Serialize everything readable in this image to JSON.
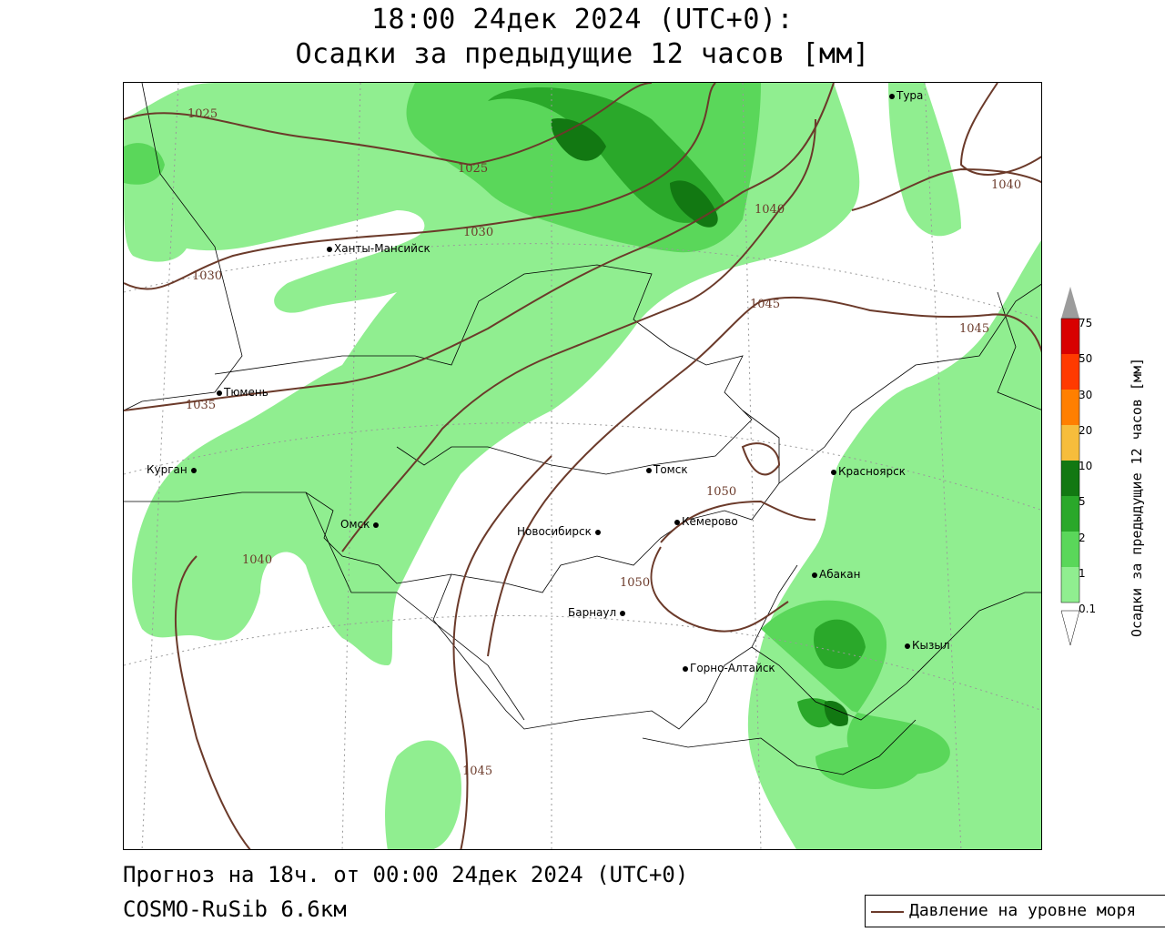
{
  "title_line1": "18:00 24дек 2024 (UTC+0):",
  "title_line2": "Осадки за предыдущие 12 часов [мм]",
  "footer_line1": "Прогноз на 18ч. от 00:00 24дек 2024 (UTC+0)",
  "footer_line2": "COSMO-RuSib 6.6км",
  "pressure_legend_label": "Давление на уровне моря",
  "legend": {
    "title": "Осадки за предыдущие 12 часов [мм]",
    "levels": [
      "0.1",
      "1",
      "2",
      "5",
      "10",
      "20",
      "30",
      "50",
      "75"
    ],
    "colors": [
      "#90ee90",
      "#5ad75a",
      "#2aa82a",
      "#127812",
      "#f6bd3c",
      "#ff7f00",
      "#ff3a00",
      "#d80000",
      "#a00000",
      "#9c9c9c"
    ]
  },
  "cities": [
    {
      "name": "Тура"
    },
    {
      "name": "Ханты-Мансийск"
    },
    {
      "name": "Тюмень"
    },
    {
      "name": "Курган"
    },
    {
      "name": "Омск"
    },
    {
      "name": "Томск"
    },
    {
      "name": "Красноярск"
    },
    {
      "name": "Кемерово"
    },
    {
      "name": "Новосибирск"
    },
    {
      "name": "Абакан"
    },
    {
      "name": "Барнаул"
    },
    {
      "name": "Кызыл"
    },
    {
      "name": "Горно-Алтайск"
    }
  ],
  "isobars": [
    "1025",
    "1025",
    "1030",
    "1030",
    "1035",
    "1040",
    "1040",
    "1040",
    "1045",
    "1045",
    "1045",
    "1050",
    "1050"
  ],
  "colors": {
    "isobar": "#6b3a2a",
    "border": "#000000",
    "grid": "#999999"
  }
}
